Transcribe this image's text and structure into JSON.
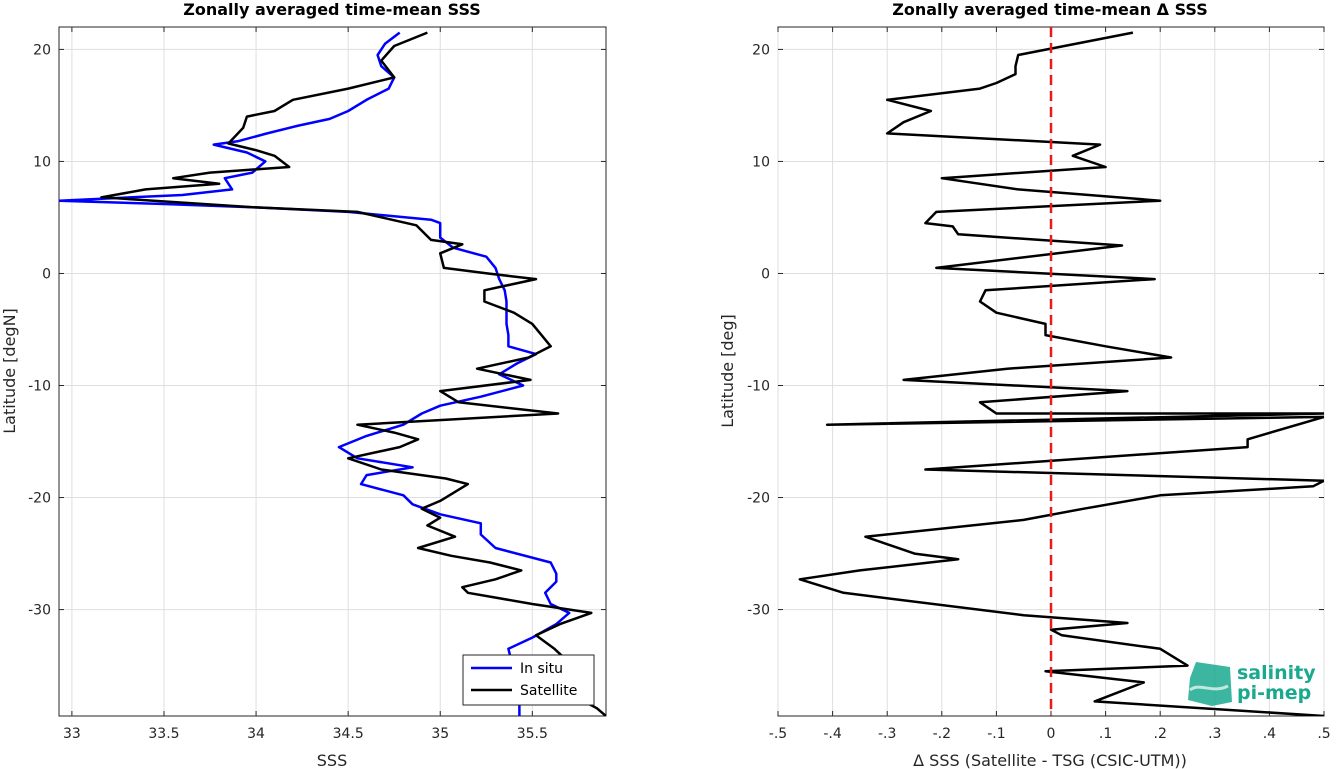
{
  "colors": {
    "in_situ": "#0000ff",
    "satellite": "#000000",
    "zero_line": "#e41a1c",
    "logo_teal": "#1aa98f"
  },
  "logo": {
    "line1": "salinity",
    "line2": "pi-mep"
  },
  "chart_data": [
    {
      "type": "line",
      "title": "Zonally averaged time-mean SSS",
      "xlabel": "SSS",
      "ylabel": "Latitude [degN]",
      "xlim": [
        32.93,
        35.9
      ],
      "ylim": [
        -39.5,
        22
      ],
      "xticks": [
        33,
        33.5,
        34,
        34.5,
        35,
        35.5
      ],
      "yticks": [
        20,
        10,
        0,
        -10,
        -20,
        -30
      ],
      "grid": true,
      "legend": {
        "position": "bottom-right",
        "entries": [
          "In situ",
          "Satellite"
        ]
      },
      "series": [
        {
          "name": "In situ",
          "color": "#0000ff",
          "points": [
            [
              34.78,
              21.5
            ],
            [
              34.7,
              20.5
            ],
            [
              34.66,
              19.5
            ],
            [
              34.68,
              18.5
            ],
            [
              34.75,
              17.5
            ],
            [
              34.72,
              16.5
            ],
            [
              34.6,
              15.5
            ],
            [
              34.5,
              14.5
            ],
            [
              34.4,
              13.8
            ],
            [
              34.23,
              13.2
            ],
            [
              34.06,
              12.5
            ],
            [
              33.9,
              11.8
            ],
            [
              33.77,
              11.5
            ],
            [
              33.95,
              10.8
            ],
            [
              34.05,
              10.0
            ],
            [
              33.98,
              9.0
            ],
            [
              33.83,
              8.5
            ],
            [
              33.87,
              7.5
            ],
            [
              33.6,
              7.0
            ],
            [
              32.93,
              6.5
            ],
            [
              33.5,
              6.2
            ],
            [
              34.0,
              5.9
            ],
            [
              34.5,
              5.5
            ],
            [
              34.95,
              4.8
            ],
            [
              35.0,
              4.5
            ],
            [
              35.0,
              3.2
            ],
            [
              35.07,
              2.3
            ],
            [
              35.25,
              1.5
            ],
            [
              35.3,
              0.5
            ],
            [
              35.32,
              -0.5
            ],
            [
              35.35,
              -1.5
            ],
            [
              35.36,
              -2.5
            ],
            [
              35.36,
              -3.5
            ],
            [
              35.36,
              -4.5
            ],
            [
              35.37,
              -5.5
            ],
            [
              35.37,
              -6.5
            ],
            [
              35.52,
              -7.2
            ],
            [
              35.42,
              -8.0
            ],
            [
              35.32,
              -9.0
            ],
            [
              35.45,
              -10.0
            ],
            [
              35.22,
              -11.0
            ],
            [
              35.0,
              -11.8
            ],
            [
              34.9,
              -12.5
            ],
            [
              34.8,
              -13.5
            ],
            [
              34.6,
              -14.5
            ],
            [
              34.45,
              -15.5
            ],
            [
              34.55,
              -16.5
            ],
            [
              34.85,
              -17.3
            ],
            [
              34.6,
              -18.0
            ],
            [
              34.57,
              -18.8
            ],
            [
              34.8,
              -19.8
            ],
            [
              34.85,
              -20.6
            ],
            [
              35.0,
              -21.5
            ],
            [
              35.22,
              -22.3
            ],
            [
              35.22,
              -23.3
            ],
            [
              35.3,
              -24.5
            ],
            [
              35.6,
              -25.8
            ],
            [
              35.63,
              -26.8
            ],
            [
              35.63,
              -27.5
            ],
            [
              35.57,
              -28.5
            ],
            [
              35.6,
              -29.5
            ],
            [
              35.7,
              -30.3
            ],
            [
              35.63,
              -31.3
            ],
            [
              35.5,
              -32.5
            ],
            [
              35.37,
              -33.5
            ],
            [
              35.4,
              -35.5
            ],
            [
              35.43,
              -37.5
            ],
            [
              35.43,
              -39.5
            ]
          ]
        },
        {
          "name": "Satellite",
          "color": "#000000",
          "points": [
            [
              34.93,
              21.5
            ],
            [
              34.75,
              20.3
            ],
            [
              34.68,
              19.0
            ],
            [
              34.75,
              17.5
            ],
            [
              34.5,
              16.5
            ],
            [
              34.2,
              15.5
            ],
            [
              34.1,
              14.5
            ],
            [
              33.95,
              14.0
            ],
            [
              33.93,
              13.0
            ],
            [
              33.85,
              11.6
            ],
            [
              34.0,
              11.0
            ],
            [
              34.1,
              10.5
            ],
            [
              34.18,
              9.5
            ],
            [
              33.75,
              9.0
            ],
            [
              33.55,
              8.5
            ],
            [
              33.8,
              8.0
            ],
            [
              33.4,
              7.5
            ],
            [
              33.16,
              6.8
            ],
            [
              34.0,
              5.9
            ],
            [
              34.55,
              5.5
            ],
            [
              34.87,
              4.3
            ],
            [
              34.95,
              3.0
            ],
            [
              35.12,
              2.6
            ],
            [
              35.0,
              1.8
            ],
            [
              35.02,
              0.5
            ],
            [
              35.26,
              0.0
            ],
            [
              35.52,
              -0.5
            ],
            [
              35.24,
              -1.5
            ],
            [
              35.24,
              -2.5
            ],
            [
              35.4,
              -3.5
            ],
            [
              35.5,
              -4.5
            ],
            [
              35.55,
              -5.5
            ],
            [
              35.6,
              -6.5
            ],
            [
              35.48,
              -7.5
            ],
            [
              35.2,
              -8.5
            ],
            [
              35.49,
              -9.5
            ],
            [
              35.0,
              -10.5
            ],
            [
              35.1,
              -11.5
            ],
            [
              35.64,
              -12.5
            ],
            [
              34.55,
              -13.5
            ],
            [
              34.75,
              -14.2
            ],
            [
              34.88,
              -14.8
            ],
            [
              34.78,
              -15.5
            ],
            [
              34.5,
              -16.5
            ],
            [
              34.68,
              -17.5
            ],
            [
              35.03,
              -18.3
            ],
            [
              35.15,
              -18.8
            ],
            [
              35.0,
              -20.3
            ],
            [
              34.9,
              -21.0
            ],
            [
              35.0,
              -21.8
            ],
            [
              34.93,
              -22.5
            ],
            [
              35.08,
              -23.5
            ],
            [
              34.88,
              -24.5
            ],
            [
              35.06,
              -25.2
            ],
            [
              35.27,
              -25.8
            ],
            [
              35.44,
              -26.5
            ],
            [
              35.3,
              -27.3
            ],
            [
              35.12,
              -28.0
            ],
            [
              35.15,
              -28.5
            ],
            [
              35.5,
              -29.5
            ],
            [
              35.82,
              -30.3
            ],
            [
              35.65,
              -31.3
            ],
            [
              35.52,
              -32.3
            ],
            [
              35.62,
              -33.5
            ],
            [
              35.75,
              -35.5
            ],
            [
              35.8,
              -36.5
            ],
            [
              35.7,
              -37.5
            ],
            [
              35.85,
              -38.8
            ],
            [
              35.9,
              -39.5
            ]
          ]
        }
      ]
    },
    {
      "type": "line",
      "title": "Zonally averaged time-mean Δ SSS",
      "xlabel": "Δ SSS (Satellite - TSG (CSIC-UTM))",
      "ylabel": "Latitude [deg]",
      "xlim": [
        -0.5,
        0.5
      ],
      "ylim": [
        -39.5,
        22
      ],
      "xticks": [
        -0.5,
        -0.4,
        -0.3,
        -0.2,
        -0.1,
        0,
        0.1,
        0.2,
        0.3,
        0.4,
        0.5
      ],
      "yticks": [
        20,
        10,
        0,
        -10,
        -20,
        -30
      ],
      "grid": true,
      "reference_line": {
        "x": 0,
        "style": "dashed",
        "color": "#e41a1c"
      },
      "series": [
        {
          "color": "#000000",
          "points": [
            [
              0.15,
              21.5
            ],
            [
              -0.06,
              19.5
            ],
            [
              -0.065,
              18.5
            ],
            [
              -0.065,
              17.8
            ],
            [
              -0.1,
              17.0
            ],
            [
              -0.13,
              16.5
            ],
            [
              -0.3,
              15.5
            ],
            [
              -0.22,
              14.5
            ],
            [
              -0.27,
              13.5
            ],
            [
              -0.3,
              12.5
            ],
            [
              0.09,
              11.5
            ],
            [
              0.04,
              10.5
            ],
            [
              0.1,
              9.5
            ],
            [
              -0.2,
              8.5
            ],
            [
              -0.06,
              7.5
            ],
            [
              0.2,
              6.5
            ],
            [
              -0.21,
              5.5
            ],
            [
              -0.23,
              4.5
            ],
            [
              -0.18,
              4.2
            ],
            [
              -0.17,
              3.5
            ],
            [
              0.13,
              2.5
            ],
            [
              -0.21,
              0.5
            ],
            [
              0.19,
              -0.5
            ],
            [
              -0.12,
              -1.5
            ],
            [
              -0.13,
              -2.5
            ],
            [
              -0.1,
              -3.5
            ],
            [
              -0.01,
              -4.5
            ],
            [
              -0.01,
              -5.5
            ],
            [
              0.1,
              -6.5
            ],
            [
              0.22,
              -7.5
            ],
            [
              -0.08,
              -8.5
            ],
            [
              -0.27,
              -9.5
            ],
            [
              0.14,
              -10.5
            ],
            [
              -0.13,
              -11.5
            ],
            [
              -0.1,
              -12.5
            ],
            [
              0.5,
              -12.5
            ],
            [
              -0.41,
              -13.5
            ],
            [
              0.5,
              -12.8
            ],
            [
              0.36,
              -14.8
            ],
            [
              0.36,
              -15.5
            ],
            [
              -0.23,
              -17.5
            ],
            [
              0.5,
              -18.5
            ],
            [
              0.48,
              -19.0
            ],
            [
              0.2,
              -19.8
            ],
            [
              0.06,
              -21.0
            ],
            [
              -0.05,
              -22.0
            ],
            [
              -0.34,
              -23.5
            ],
            [
              -0.25,
              -25.0
            ],
            [
              -0.17,
              -25.5
            ],
            [
              -0.35,
              -26.5
            ],
            [
              -0.46,
              -27.3
            ],
            [
              -0.38,
              -28.5
            ],
            [
              -0.05,
              -30.5
            ],
            [
              0.14,
              -31.2
            ],
            [
              0.0,
              -31.8
            ],
            [
              0.02,
              -32.3
            ],
            [
              0.2,
              -33.5
            ],
            [
              0.25,
              -35.0
            ],
            [
              -0.01,
              -35.5
            ],
            [
              0.17,
              -36.5
            ],
            [
              0.08,
              -38.2
            ],
            [
              0.5,
              -39.5
            ]
          ]
        }
      ]
    }
  ]
}
